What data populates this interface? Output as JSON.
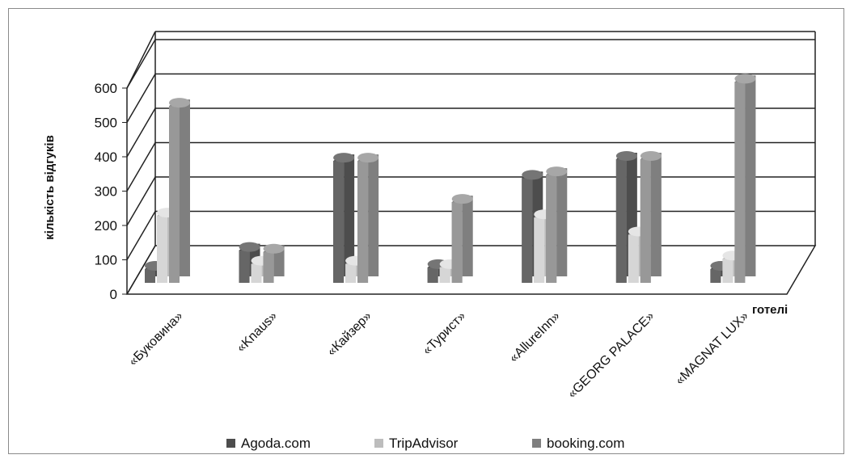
{
  "chart_data": {
    "type": "bar",
    "title": "",
    "xlabel": "готелі",
    "ylabel": "кількість відгуків",
    "ylim": [
      0,
      600
    ],
    "yticks": [
      0,
      100,
      200,
      300,
      400,
      500,
      600
    ],
    "grid": true,
    "legend_position": "bottom",
    "categories": [
      "«Буковина»",
      "«Knaus»",
      "«Кайзер»",
      "«Турист»",
      "«AllureInn»",
      "«GEORG PALACE»",
      "«MAGNAT LUX»"
    ],
    "series": [
      {
        "name": "Agoda.com",
        "color": "#4d4d4d",
        "values": [
          40,
          95,
          355,
          45,
          305,
          360,
          40
        ]
      },
      {
        "name": "TripAdvisor",
        "color": "#bdbdbd",
        "values": [
          195,
          55,
          55,
          45,
          190,
          140,
          70
        ]
      },
      {
        "name": "booking.com",
        "color": "#7f7f7f",
        "values": [
          515,
          90,
          355,
          235,
          315,
          360,
          585
        ]
      }
    ]
  }
}
